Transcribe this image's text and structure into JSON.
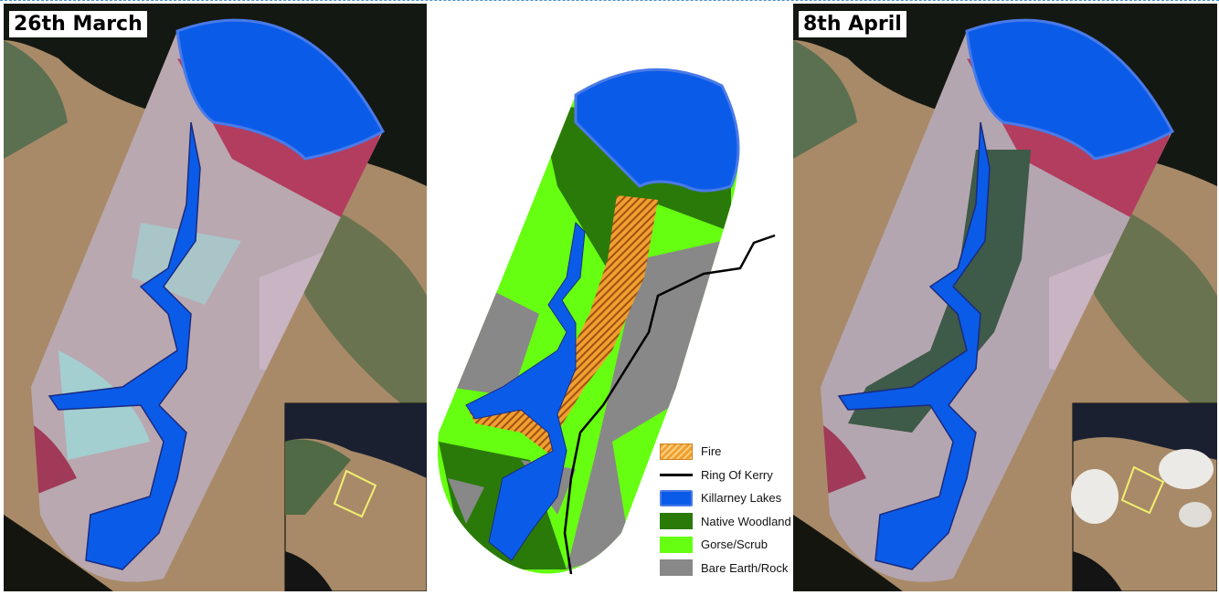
{
  "panels": {
    "left": {
      "label": "26th March"
    },
    "right": {
      "label": "8th April"
    }
  },
  "legend": {
    "items": [
      {
        "label": "Fire",
        "color": "#f0a030",
        "pattern": "hatched"
      },
      {
        "label": "Ring Of Kerry",
        "color": "#000000",
        "pattern": "line"
      },
      {
        "label": "Killarney Lakes",
        "color": "#0a5ce8"
      },
      {
        "label": "Native Woodland",
        "color": "#2a7a0a"
      },
      {
        "label": "Gorse/Scrub",
        "color": "#66ff11"
      },
      {
        "label": "Bare Earth/Rock",
        "color": "#888888"
      }
    ]
  }
}
